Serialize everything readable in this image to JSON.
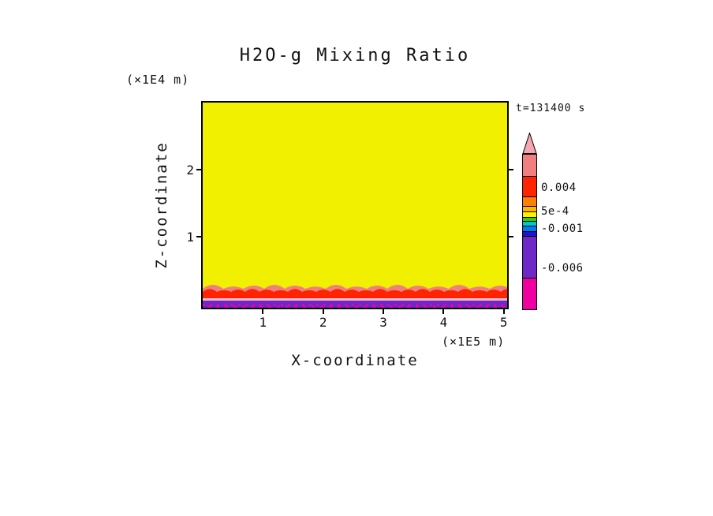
{
  "title": "H2O-g Mixing Ratio",
  "time_stamp": "t=131400 s",
  "axes": {
    "x": {
      "label": "X-coordinate",
      "units": "(×1E5 m)",
      "ticks": [
        "1",
        "2",
        "3",
        "4",
        "5"
      ]
    },
    "y": {
      "label": "Z-coordinate",
      "units": "(×1E4 m)",
      "ticks": [
        "1",
        "2"
      ]
    }
  },
  "colorbar": {
    "arrow_color": "#F4A7B0",
    "labels": [
      "0.004",
      "5e-4",
      "-0.001",
      "-0.006"
    ],
    "segments": [
      {
        "color": "#F08080",
        "h": 28
      },
      {
        "color": "#FF2400",
        "h": 26
      },
      {
        "color": "#FF8000",
        "h": 12
      },
      {
        "color": "#FFB400",
        "h": 7
      },
      {
        "color": "#FFF000",
        "h": 7
      },
      {
        "color": "#3CC814",
        "h": 5
      },
      {
        "color": "#00C8C8",
        "h": 6
      },
      {
        "color": "#0078FF",
        "h": 7
      },
      {
        "color": "#1E14C8",
        "h": 6
      },
      {
        "color": "#6E28C8",
        "h": 53
      },
      {
        "color": "#F000A0",
        "h": 40
      }
    ]
  },
  "field": {
    "interior_color": "#F0F000",
    "surface_bands": [
      {
        "name": "salmon-fringe",
        "color": "#F08080"
      },
      {
        "name": "red-band",
        "color": "#FF2400"
      },
      {
        "name": "pink-line",
        "color": "#FFB8D2"
      },
      {
        "name": "violet-band",
        "color": "#6E28C8"
      },
      {
        "name": "magenta-speckles",
        "color": "#F000A0"
      }
    ]
  },
  "chart_data": {
    "type": "heatmap",
    "title": "H2O-g Mixing Ratio",
    "time": "t=131400 s",
    "xlabel": "X-coordinate",
    "x_units": "×1E5 m",
    "x_range": [
      0,
      5.1
    ],
    "x_ticks": [
      1,
      2,
      3,
      4,
      5
    ],
    "ylabel": "Z-coordinate",
    "y_units": "×1E4 m",
    "y_range": [
      0,
      2.8
    ],
    "y_ticks": [
      1,
      2
    ],
    "colorbar_labels": [
      "0.004",
      "5e-4",
      "-0.001",
      "-0.006"
    ],
    "legend_position": "right",
    "grid": false,
    "field_description": [
      {
        "region": "interior, z above ~0.2e4 m, all x",
        "color": "#F0F000",
        "approx_value": "between 5e-4 and 0.004"
      },
      {
        "region": "thin wavy fringe atop surface band",
        "color": "#F08080",
        "approx_value": "above 0.004"
      },
      {
        "region": "near-surface band, z ~0.1e4 m, all x",
        "color": "#FF2400",
        "approx_value": "~0.004"
      },
      {
        "region": "thin transition line below red band",
        "color": "#FFB8D2",
        "approx_value": "~5e-4"
      },
      {
        "region": "lowest levels, z < ~0.08e4 m",
        "color": "#6E28C8",
        "approx_value": "~-0.006"
      },
      {
        "region": "speckled row along bottom boundary",
        "color": "#F000A0",
        "approx_value": "below -0.006"
      }
    ]
  }
}
